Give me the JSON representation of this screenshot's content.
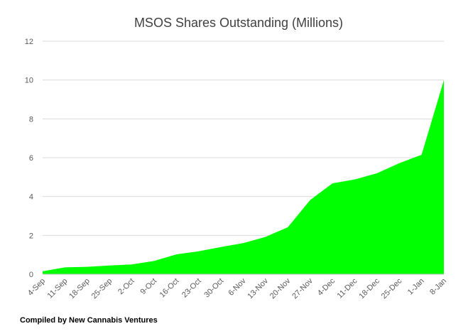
{
  "chart_data": {
    "type": "area",
    "title": "MSOS Shares Outstanding (Millions)",
    "xlabel": "",
    "ylabel": "",
    "categories": [
      "4-Sep",
      "11-Sep",
      "18-Sep",
      "25-Sep",
      "2-Oct",
      "9-Oct",
      "16-Oct",
      "23-Oct",
      "30-Oct",
      "6-Nov",
      "13-Nov",
      "20-Nov",
      "27-Nov",
      "4-Dec",
      "11-Dec",
      "18-Dec",
      "25-Dec",
      "1-Jan",
      "8-Jan"
    ],
    "series": [
      {
        "name": "",
        "values": [
          0.15,
          0.35,
          0.38,
          0.45,
          0.5,
          0.68,
          1.02,
          1.18,
          1.4,
          1.6,
          1.92,
          2.42,
          3.82,
          4.68,
          4.88,
          5.2,
          5.72,
          6.15,
          10.0
        ]
      }
    ],
    "ylim": [
      0,
      12
    ],
    "yticks": [
      0,
      2,
      4,
      6,
      8,
      10,
      12
    ],
    "grid": true,
    "legend": "none",
    "colors": {
      "fill": "#00ff00",
      "grid": "#d9d9d9",
      "axis": "#bfbfbf",
      "text": "#595959"
    }
  },
  "footer": "Compiled by New Cannabis Ventures"
}
